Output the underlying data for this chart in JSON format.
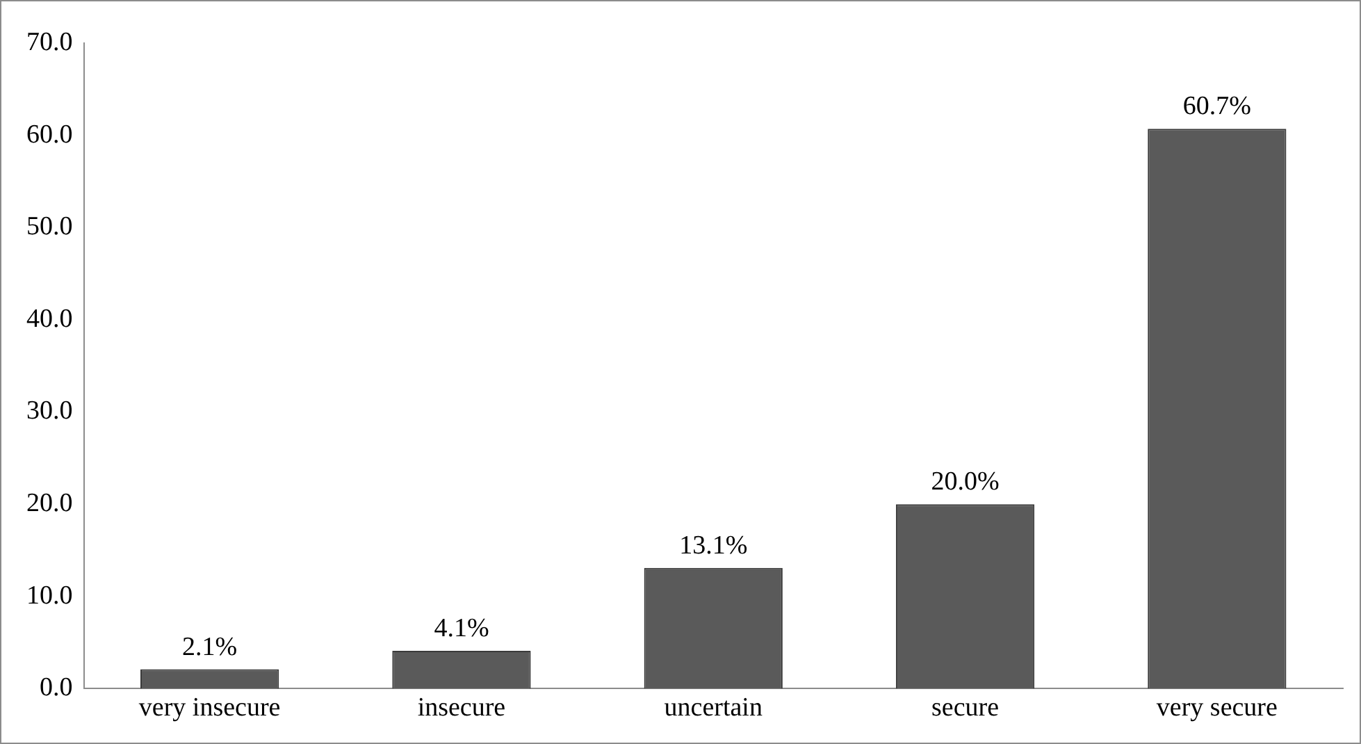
{
  "chart_data": {
    "type": "bar",
    "categories": [
      "very insecure",
      "insecure",
      "uncertain",
      "secure",
      "very secure"
    ],
    "values": [
      2.1,
      4.1,
      13.1,
      20.0,
      60.7
    ],
    "value_labels": [
      "2.1%",
      "4.1%",
      "13.1%",
      "20.0%",
      "60.7%"
    ],
    "color": "#5a5a5a",
    "ylim": [
      0,
      70
    ],
    "yticks": [
      {
        "value": 0,
        "label": "0.0"
      },
      {
        "value": 10,
        "label": "10.0"
      },
      {
        "value": 20,
        "label": "20.0"
      },
      {
        "value": 30,
        "label": "30.0"
      },
      {
        "value": 40,
        "label": "40.0"
      },
      {
        "value": 50,
        "label": "50.0"
      },
      {
        "value": 60,
        "label": "60.0"
      },
      {
        "value": 70,
        "label": "70.0"
      }
    ],
    "grid": false,
    "legend": false
  }
}
